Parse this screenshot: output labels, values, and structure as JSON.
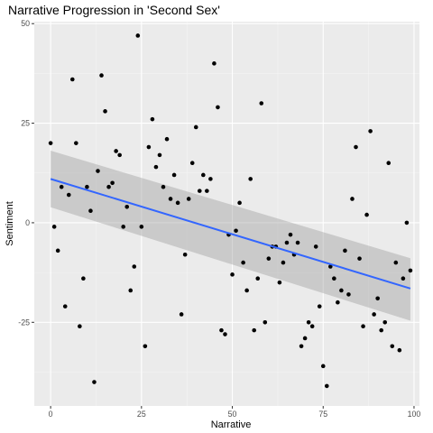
{
  "chart_data": {
    "type": "scatter",
    "title": "Narrative Progression in 'Second Sex'",
    "xlabel": "Narrative",
    "ylabel": "Sentiment",
    "xlim": [
      -4.5,
      101.5
    ],
    "ylim": [
      -46,
      50.5
    ],
    "x_ticks": [
      0,
      25,
      50,
      75,
      100
    ],
    "y_ticks": [
      -25,
      0,
      25,
      50
    ],
    "x_tick_labels": [
      "0",
      "25",
      "50",
      "75",
      "100"
    ],
    "y_tick_labels": [
      "-25",
      "0",
      "25",
      "50"
    ],
    "grid": true,
    "legend": "none",
    "points": [
      {
        "x": 0,
        "y": 20
      },
      {
        "x": 1,
        "y": -1
      },
      {
        "x": 2,
        "y": -7
      },
      {
        "x": 3,
        "y": 9
      },
      {
        "x": 4,
        "y": -21
      },
      {
        "x": 5,
        "y": 7
      },
      {
        "x": 6,
        "y": 36
      },
      {
        "x": 7,
        "y": 20
      },
      {
        "x": 8,
        "y": -26
      },
      {
        "x": 9,
        "y": -14
      },
      {
        "x": 10,
        "y": 9
      },
      {
        "x": 11,
        "y": 3
      },
      {
        "x": 12,
        "y": -40
      },
      {
        "x": 13,
        "y": 13
      },
      {
        "x": 14,
        "y": 37
      },
      {
        "x": 15,
        "y": 28
      },
      {
        "x": 16,
        "y": 9
      },
      {
        "x": 17,
        "y": 10
      },
      {
        "x": 18,
        "y": 18
      },
      {
        "x": 19,
        "y": 17
      },
      {
        "x": 20,
        "y": -1
      },
      {
        "x": 21,
        "y": 4
      },
      {
        "x": 22,
        "y": -17
      },
      {
        "x": 23,
        "y": -11
      },
      {
        "x": 24,
        "y": 47
      },
      {
        "x": 25,
        "y": -1
      },
      {
        "x": 26,
        "y": -31
      },
      {
        "x": 27,
        "y": 19
      },
      {
        "x": 28,
        "y": 26
      },
      {
        "x": 29,
        "y": 14
      },
      {
        "x": 30,
        "y": 17
      },
      {
        "x": 31,
        "y": 9
      },
      {
        "x": 32,
        "y": 21
      },
      {
        "x": 33,
        "y": 6
      },
      {
        "x": 34,
        "y": 12
      },
      {
        "x": 35,
        "y": 5
      },
      {
        "x": 36,
        "y": -23
      },
      {
        "x": 37,
        "y": -8
      },
      {
        "x": 38,
        "y": 6
      },
      {
        "x": 39,
        "y": 15
      },
      {
        "x": 40,
        "y": 24
      },
      {
        "x": 41,
        "y": 8
      },
      {
        "x": 42,
        "y": 12
      },
      {
        "x": 43,
        "y": 8
      },
      {
        "x": 44,
        "y": 11
      },
      {
        "x": 45,
        "y": 40
      },
      {
        "x": 46,
        "y": 29
      },
      {
        "x": 47,
        "y": -27
      },
      {
        "x": 48,
        "y": -28
      },
      {
        "x": 49,
        "y": -3
      },
      {
        "x": 50,
        "y": -13
      },
      {
        "x": 51,
        "y": -2
      },
      {
        "x": 52,
        "y": 5
      },
      {
        "x": 53,
        "y": -10
      },
      {
        "x": 54,
        "y": -17
      },
      {
        "x": 55,
        "y": 11
      },
      {
        "x": 56,
        "y": -27
      },
      {
        "x": 57,
        "y": -14
      },
      {
        "x": 58,
        "y": 30
      },
      {
        "x": 59,
        "y": -25
      },
      {
        "x": 60,
        "y": -9
      },
      {
        "x": 61,
        "y": -6
      },
      {
        "x": 62,
        "y": -6
      },
      {
        "x": 63,
        "y": -15
      },
      {
        "x": 64,
        "y": -10
      },
      {
        "x": 65,
        "y": -5
      },
      {
        "x": 66,
        "y": -3
      },
      {
        "x": 67,
        "y": -8
      },
      {
        "x": 68,
        "y": -5
      },
      {
        "x": 69,
        "y": -31
      },
      {
        "x": 70,
        "y": -29
      },
      {
        "x": 71,
        "y": -25
      },
      {
        "x": 72,
        "y": -26
      },
      {
        "x": 73,
        "y": -6
      },
      {
        "x": 74,
        "y": -21
      },
      {
        "x": 75,
        "y": -36
      },
      {
        "x": 76,
        "y": -41
      },
      {
        "x": 77,
        "y": -11
      },
      {
        "x": 78,
        "y": -14
      },
      {
        "x": 79,
        "y": -20
      },
      {
        "x": 80,
        "y": -17
      },
      {
        "x": 81,
        "y": -7
      },
      {
        "x": 82,
        "y": -18
      },
      {
        "x": 83,
        "y": 6
      },
      {
        "x": 84,
        "y": 19
      },
      {
        "x": 85,
        "y": -9
      },
      {
        "x": 86,
        "y": -26
      },
      {
        "x": 87,
        "y": 2
      },
      {
        "x": 88,
        "y": 23
      },
      {
        "x": 89,
        "y": -23
      },
      {
        "x": 90,
        "y": -19
      },
      {
        "x": 91,
        "y": -27
      },
      {
        "x": 92,
        "y": -25
      },
      {
        "x": 93,
        "y": 15
      },
      {
        "x": 94,
        "y": -31
      },
      {
        "x": 95,
        "y": -10
      },
      {
        "x": 96,
        "y": -32
      },
      {
        "x": 97,
        "y": -14
      },
      {
        "x": 98,
        "y": 0
      },
      {
        "x": 99,
        "y": -12
      }
    ],
    "trend": {
      "method": "linear",
      "x": [
        0,
        99
      ],
      "y": [
        11,
        -16.5
      ],
      "ci_lower": [
        3.9,
        -24.6
      ],
      "ci_upper": [
        18.1,
        -8.9
      ]
    },
    "colors": {
      "panel_background": "#ebebeb",
      "grid_major": "#ffffff",
      "grid_minor": "#f5f5f5",
      "points": "#000000",
      "trend_line": "#3366ff",
      "confidence_band": "#999999",
      "tick_label": "#4d4d4d",
      "tick_mark": "#333333",
      "text": "#000000"
    }
  }
}
